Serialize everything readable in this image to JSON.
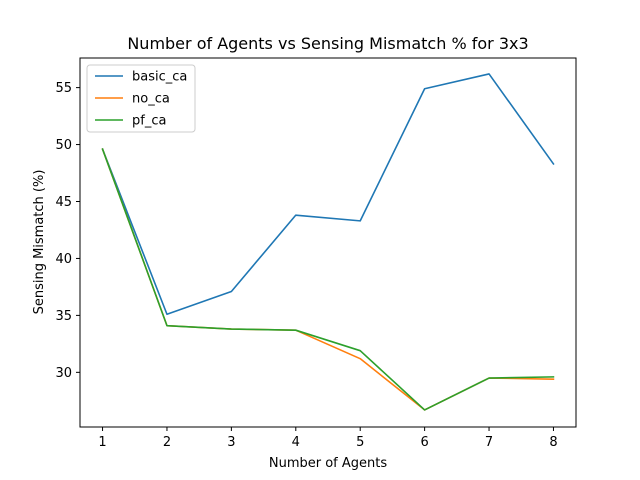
{
  "chart_data": {
    "type": "line",
    "title": "Number of Agents vs Sensing Mismatch % for 3x3",
    "xlabel": "Number of Agents",
    "ylabel": "Sensing Mismatch (%)",
    "x": [
      1,
      2,
      3,
      4,
      5,
      6,
      7,
      8
    ],
    "xlim": [
      0.65,
      8.35
    ],
    "ylim": [
      25.2,
      57.6
    ],
    "xticks": [
      1,
      2,
      3,
      4,
      5,
      6,
      7,
      8
    ],
    "yticks": [
      30,
      35,
      40,
      45,
      50,
      55
    ],
    "grid": false,
    "legend_position": "top-left",
    "series": [
      {
        "name": "basic_ca",
        "color": "#1f77b4",
        "values": [
          49.6,
          35.1,
          37.1,
          43.8,
          43.3,
          54.9,
          56.2,
          48.3
        ]
      },
      {
        "name": "no_ca",
        "color": "#ff7f0e",
        "values": [
          49.6,
          34.1,
          33.8,
          33.7,
          31.2,
          26.7,
          29.5,
          29.4
        ]
      },
      {
        "name": "pf_ca",
        "color": "#2ca02c",
        "values": [
          49.6,
          34.1,
          33.8,
          33.7,
          31.9,
          26.7,
          29.5,
          29.6
        ]
      }
    ]
  }
}
